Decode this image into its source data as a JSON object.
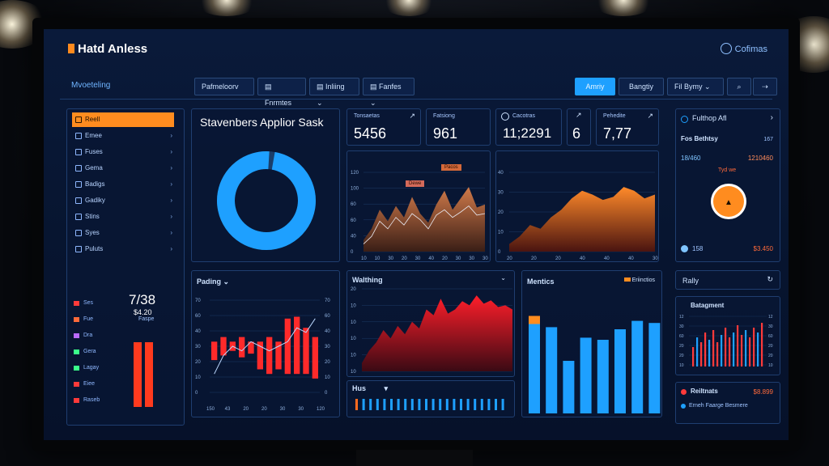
{
  "app": {
    "title": "Hatd Anless",
    "brand_right": "Cofimas",
    "subtitle": "Mvoeteling"
  },
  "toolbar": {
    "buttons": [
      "Pafmeloorv",
      "Fnrmtes",
      "Inliing",
      "Fanfes"
    ],
    "right_buttons": [
      "Amriy",
      "Bangtiy",
      "Fil Bymy"
    ]
  },
  "sidebar": {
    "items": [
      {
        "label": "Reell",
        "active": true
      },
      {
        "label": "Emee"
      },
      {
        "label": "Fuses"
      },
      {
        "label": "Gema"
      },
      {
        "label": "Badigs"
      },
      {
        "label": "Gadiky"
      },
      {
        "label": "Stins"
      },
      {
        "label": "Syes"
      },
      {
        "label": "Puluts"
      }
    ],
    "legend": [
      "Ses",
      "Fue",
      "Dra",
      "Gera",
      "Lagay",
      "Eiee",
      "Raseb"
    ],
    "big_number": "7/38",
    "sub_number": "$4.20",
    "sub_label": "Faspe",
    "bar_values": [
      0.88,
      0.88
    ],
    "colors": {
      "accent": "#ff8c1f",
      "bar": "#ff3a1e"
    }
  },
  "donut_panel": {
    "title": "Stavenbers Applior Sask",
    "value_fraction": 0.98,
    "color": "#1ea0ff"
  },
  "kpis": [
    {
      "label": "Tonsaetas",
      "value": "5456"
    },
    {
      "label": "Fatsiong",
      "value": "961"
    },
    {
      "label": "Cacotras",
      "value": "11;2291"
    },
    {
      "label": "",
      "value": "6"
    },
    {
      "label": "Pehedite",
      "value": "7,77"
    }
  ],
  "area_chart_1": {
    "type": "area",
    "ylabels": [
      "120",
      "100",
      "60",
      "60",
      "40",
      "0"
    ],
    "xlabels": [
      "10",
      "10",
      "30",
      "20",
      "30",
      "40",
      "20",
      "30",
      "30",
      "30"
    ],
    "legend": [
      "Pacos",
      "Dewe"
    ],
    "values": [
      15,
      30,
      55,
      40,
      60,
      45,
      72,
      50,
      38,
      62,
      80,
      55,
      70,
      85,
      58,
      62
    ],
    "values2": [
      10,
      20,
      40,
      30,
      45,
      35,
      50,
      42,
      30,
      48,
      55,
      45,
      52,
      60,
      48,
      50
    ]
  },
  "area_chart_2": {
    "type": "area",
    "ylabels": [
      "40",
      "30",
      "20",
      "10",
      "0"
    ],
    "xlabels": [
      "20",
      "20",
      "20",
      "40",
      "40",
      "40",
      "30"
    ],
    "values": [
      10,
      20,
      35,
      30,
      45,
      55,
      70,
      80,
      75,
      68,
      72,
      85,
      80,
      70,
      75
    ]
  },
  "candle_panel": {
    "title": "Pading",
    "ylabels": [
      "70",
      "60",
      "40",
      "30",
      "20",
      "10",
      "0"
    ],
    "xlabels": [
      "150",
      "43",
      "20",
      "20",
      "30",
      "30",
      "120"
    ],
    "bars": [
      {
        "low": 0.35,
        "high": 0.55
      },
      {
        "low": 0.4,
        "high": 0.6
      },
      {
        "low": 0.45,
        "high": 0.55
      },
      {
        "low": 0.38,
        "high": 0.6
      },
      {
        "low": 0.42,
        "high": 0.55
      },
      {
        "low": 0.25,
        "high": 0.55
      },
      {
        "low": 0.2,
        "high": 0.6
      },
      {
        "low": 0.25,
        "high": 0.55
      },
      {
        "low": 0.2,
        "high": 0.8
      },
      {
        "low": 0.2,
        "high": 0.82
      },
      {
        "low": 0.2,
        "high": 0.7
      },
      {
        "low": 0.15,
        "high": 0.6
      }
    ],
    "line": [
      0.2,
      0.4,
      0.5,
      0.45,
      0.55,
      0.5,
      0.45,
      0.5,
      0.55,
      0.7,
      0.65,
      0.8
    ]
  },
  "walking_panel": {
    "title": "Walthing",
    "ylabels": [
      "20",
      "10",
      "10",
      "10",
      "10",
      "10"
    ],
    "values": [
      10,
      25,
      35,
      50,
      40,
      55,
      45,
      60,
      52,
      75,
      68,
      88,
      70,
      75,
      85,
      80,
      92,
      82,
      86,
      78,
      80,
      75
    ],
    "sub_title": "Hus",
    "sub_bars": 22
  },
  "metrics_panel": {
    "title": "Mentics",
    "legend": "Eriinctios",
    "values": [
      0.85,
      0.82,
      0.5,
      0.72,
      0.7,
      0.8,
      0.88,
      0.86
    ],
    "highlight_first": true
  },
  "right_panel": {
    "title": "Fulthop Afl",
    "sub_title": "Fos Bethtsy",
    "sub_value": "167",
    "left_value": "18/460",
    "right_value": "1210460",
    "gauge_label": "Tyd we",
    "foot_left": "158",
    "foot_right": "$3.450",
    "rally": "Rally",
    "bar_panel_title": "Batagment",
    "bar_panel_ylabels": [
      "12",
      "30",
      "60",
      "20",
      "20",
      "10"
    ],
    "final_title": "Reiltnats",
    "final_value": "$8.899",
    "final_desc": "Erneh Faarge Besmere"
  }
}
